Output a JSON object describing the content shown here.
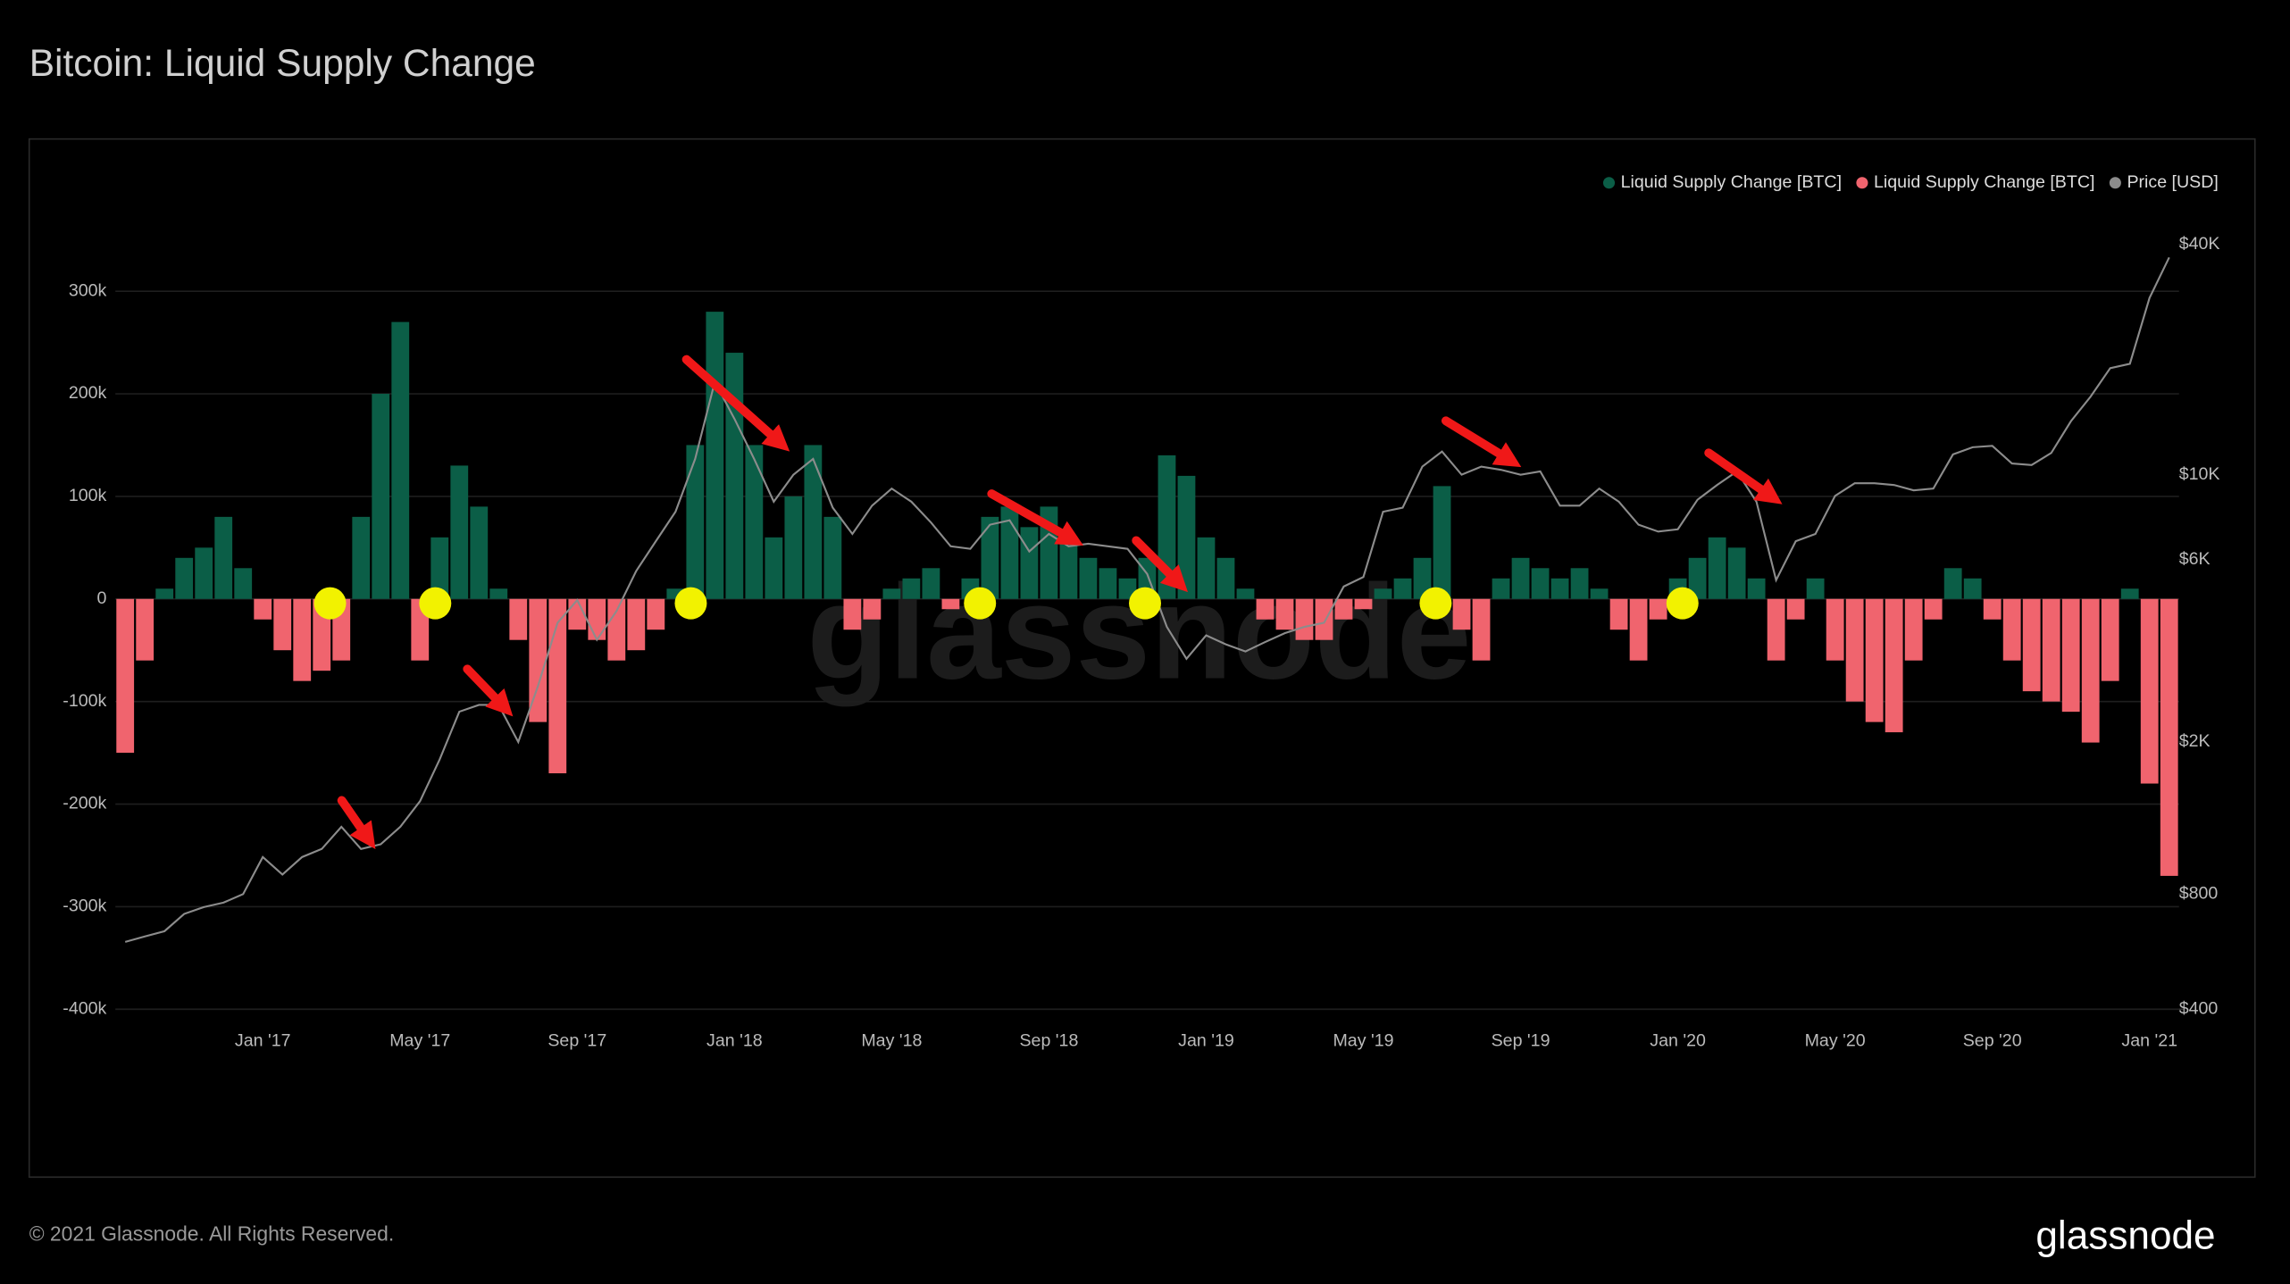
{
  "chart_data": {
    "type": "bar",
    "title": "Bitcoin: Liquid Supply Change",
    "watermark": "glassnode",
    "footer": "© 2021 Glassnode. All Rights Reserved.",
    "logo": "glassnode",
    "categories": [
      null,
      null,
      null,
      null,
      null,
      null,
      null,
      "Jan '17",
      null,
      null,
      null,
      null,
      null,
      null,
      null,
      "May '17",
      null,
      null,
      null,
      null,
      null,
      null,
      null,
      "Sep '17",
      null,
      null,
      null,
      null,
      null,
      null,
      null,
      "Jan '18",
      null,
      null,
      null,
      null,
      null,
      null,
      null,
      "May '18",
      null,
      null,
      null,
      null,
      null,
      null,
      null,
      "Sep '18",
      null,
      null,
      null,
      null,
      null,
      null,
      null,
      "Jan '19",
      null,
      null,
      null,
      null,
      null,
      null,
      null,
      "May '19",
      null,
      null,
      null,
      null,
      null,
      null,
      null,
      "Sep '19",
      null,
      null,
      null,
      null,
      null,
      null,
      null,
      "Jan '20",
      null,
      null,
      null,
      null,
      null,
      null,
      null,
      "May '20",
      null,
      null,
      null,
      null,
      null,
      null,
      null,
      "Sep '20",
      null,
      null,
      null,
      null,
      null,
      null,
      null,
      "Jan '21",
      null
    ],
    "series": [
      {
        "name": "Liquid Supply Change [BTC]",
        "color": "#0b5e47",
        "values": [
          null,
          null,
          10000,
          40000,
          50000,
          80000,
          30000,
          null,
          null,
          null,
          null,
          null,
          80000,
          200000,
          270000,
          null,
          60000,
          130000,
          90000,
          10000,
          null,
          null,
          null,
          null,
          null,
          null,
          null,
          null,
          10000,
          150000,
          280000,
          240000,
          150000,
          60000,
          100000,
          150000,
          80000,
          null,
          null,
          10000,
          20000,
          30000,
          null,
          20000,
          80000,
          90000,
          70000,
          90000,
          60000,
          40000,
          30000,
          20000,
          40000,
          140000,
          120000,
          60000,
          40000,
          10000,
          null,
          null,
          null,
          null,
          null,
          null,
          10000,
          20000,
          40000,
          110000,
          null,
          null,
          20000,
          40000,
          30000,
          20000,
          30000,
          10000,
          null,
          null,
          null,
          20000,
          40000,
          60000,
          50000,
          20000,
          null,
          null,
          20000,
          null,
          null,
          null,
          null,
          null,
          null,
          30000,
          20000,
          null,
          null,
          null,
          null,
          null,
          null,
          null,
          10000,
          null,
          null
        ]
      },
      {
        "name": "Liquid Supply Change [BTC]",
        "color": "#f0646e",
        "values": [
          -150000,
          -60000,
          null,
          null,
          null,
          null,
          null,
          -20000,
          -50000,
          -80000,
          -70000,
          -60000,
          null,
          null,
          null,
          -60000,
          null,
          null,
          null,
          null,
          -40000,
          -120000,
          -170000,
          -30000,
          -40000,
          -60000,
          -50000,
          -30000,
          null,
          null,
          null,
          null,
          null,
          null,
          null,
          null,
          null,
          -30000,
          -20000,
          null,
          null,
          null,
          -10000,
          null,
          null,
          null,
          null,
          null,
          null,
          null,
          null,
          null,
          null,
          null,
          null,
          null,
          null,
          null,
          -20000,
          -30000,
          -40000,
          -40000,
          -20000,
          -10000,
          null,
          null,
          null,
          null,
          -30000,
          -60000,
          null,
          null,
          null,
          null,
          null,
          null,
          -30000,
          -60000,
          -20000,
          null,
          null,
          null,
          null,
          null,
          -60000,
          -20000,
          null,
          -60000,
          -100000,
          -120000,
          -130000,
          -60000,
          -20000,
          null,
          null,
          -20000,
          -60000,
          -90000,
          -100000,
          -110000,
          -140000,
          -80000,
          null,
          -180000,
          -270000
        ]
      },
      {
        "name": "Price [USD]",
        "color": "#8c8c8c",
        "axis": "y2",
        "values": [
          600,
          620,
          640,
          710,
          740,
          760,
          800,
          1000,
          900,
          1000,
          1050,
          1200,
          1050,
          1080,
          1200,
          1400,
          1800,
          2400,
          2500,
          2500,
          2000,
          2800,
          4100,
          4700,
          3700,
          4400,
          5600,
          6700,
          8000,
          11000,
          17500,
          14000,
          11000,
          8500,
          10000,
          11000,
          8200,
          7000,
          8300,
          9200,
          8500,
          7500,
          6500,
          6400,
          7400,
          7600,
          6300,
          7000,
          6500,
          6600,
          6500,
          6400,
          5500,
          4000,
          3300,
          3800,
          3600,
          3450,
          3650,
          3850,
          4000,
          4100,
          5100,
          5400,
          8000,
          8200,
          10500,
          11500,
          10000,
          10500,
          10300,
          10000,
          10200,
          8300,
          8300,
          9200,
          8500,
          7400,
          7100,
          7200,
          8600,
          9400,
          10200,
          8500,
          5300,
          6700,
          7000,
          8800,
          9500,
          9500,
          9400,
          9100,
          9200,
          11300,
          11800,
          11900,
          10700,
          10600,
          11400,
          13800,
          16000,
          19000,
          19500,
          29000,
          37000
        ]
      }
    ],
    "ylim": [
      -400000,
      400000
    ],
    "yticks": [
      {
        "value": -400000,
        "label": "-400k"
      },
      {
        "value": -300000,
        "label": "-300k"
      },
      {
        "value": -200000,
        "label": "-200k"
      },
      {
        "value": -100000,
        "label": "-100k"
      },
      0,
      {
        "value": 100000,
        "label": "100k"
      },
      {
        "value": 200000,
        "label": "200k"
      },
      {
        "value": 300000,
        "label": "300k"
      }
    ],
    "y2lim": [
      400,
      56000
    ],
    "y2log": true,
    "y2ticks": [
      {
        "value": 400,
        "label": "$400"
      },
      {
        "value": 800,
        "label": "$800"
      },
      {
        "value": 2000,
        "label": "$2K"
      },
      {
        "value": 6000,
        "label": "$6K"
      },
      {
        "value": 10000,
        "label": "$10K"
      },
      {
        "value": 40000,
        "label": "$40K"
      }
    ],
    "grid": true,
    "legend": "top-right"
  }
}
